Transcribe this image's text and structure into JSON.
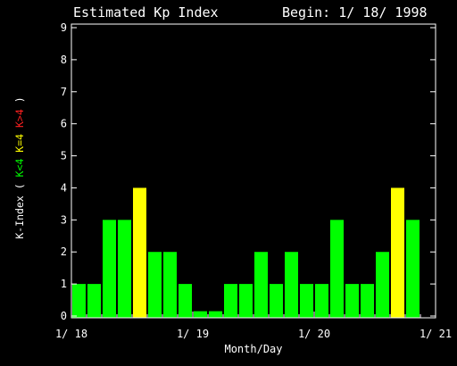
{
  "chart_data": {
    "type": "bar",
    "title": "Estimated Kp Index",
    "subtitle": "Begin: 1/ 18/ 1998",
    "xlabel": "Month/Day",
    "ylabel": {
      "prefix": "K-Index",
      "open": "(",
      "parts": [
        {
          "text": "K<4",
          "color": "#00ff00"
        },
        {
          "text": "K=4",
          "color": "#ffff00"
        },
        {
          "text": "K>4",
          "color": "#ff2020"
        }
      ],
      "close": ")"
    },
    "ylim": [
      0,
      9
    ],
    "yticks": [
      0,
      1,
      2,
      3,
      4,
      5,
      6,
      7,
      8,
      9
    ],
    "xlim": [
      0,
      24
    ],
    "x_ticks": [
      {
        "label": "1/ 18",
        "pos": 0
      },
      {
        "label": "1/ 19",
        "pos": 8
      },
      {
        "label": "1/ 20",
        "pos": 16
      },
      {
        "label": "1/ 21",
        "pos": 24
      }
    ],
    "interval_hours": 3,
    "values": [
      1,
      1,
      3,
      3,
      4,
      2,
      2,
      1,
      0.15,
      0.15,
      1,
      1,
      2,
      1,
      2,
      1,
      1,
      3,
      1,
      1,
      2,
      4,
      3
    ],
    "colors": {
      "below": "#00ff00",
      "equal": "#ffff00",
      "above": "#ff0000",
      "axis": "#ffffff",
      "background": "#000000"
    },
    "grid": false,
    "legend": "none"
  }
}
